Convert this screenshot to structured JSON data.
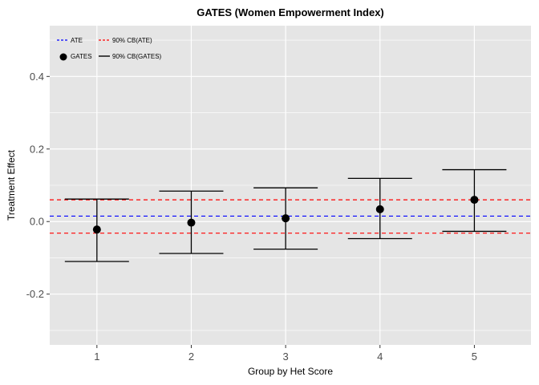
{
  "chart_data": {
    "type": "scatter",
    "title": "GATES (Women Empowerment Index)",
    "xlabel": "Group by Het Score",
    "ylabel": "Treatment Effect",
    "categories": [
      "1",
      "2",
      "3",
      "4",
      "5"
    ],
    "xlim": [
      0.5,
      5.6
    ],
    "ylim": [
      -0.34,
      0.54
    ],
    "yticks": [
      -0.2,
      0.0,
      0.2,
      0.4
    ],
    "ytick_labels": [
      "-0.2",
      "0.0",
      "0.2",
      "0.4"
    ],
    "grid": true,
    "legend_position": "top-left",
    "series": [
      {
        "name": "GATES",
        "kind": "point",
        "color": "#000000",
        "values": [
          -0.022,
          -0.003,
          0.009,
          0.034,
          0.06
        ]
      },
      {
        "name": "90% CB(GATES)",
        "kind": "errorbar",
        "color": "#000000",
        "lower": [
          -0.11,
          -0.088,
          -0.076,
          -0.047,
          -0.027
        ],
        "upper": [
          0.062,
          0.084,
          0.093,
          0.119,
          0.143
        ]
      },
      {
        "name": "ATE",
        "kind": "hline",
        "color": "#0000ff",
        "value": 0.015
      },
      {
        "name": "90% CB(ATE)",
        "kind": "hline-band",
        "color": "#ff0000",
        "lower": -0.032,
        "upper": 0.06
      }
    ],
    "legend": [
      "ATE",
      "90% CB(ATE)",
      "GATES",
      "90% CB(GATES)"
    ],
    "panel_color": "#e5e5e5",
    "grid_color": "#ffffff"
  }
}
